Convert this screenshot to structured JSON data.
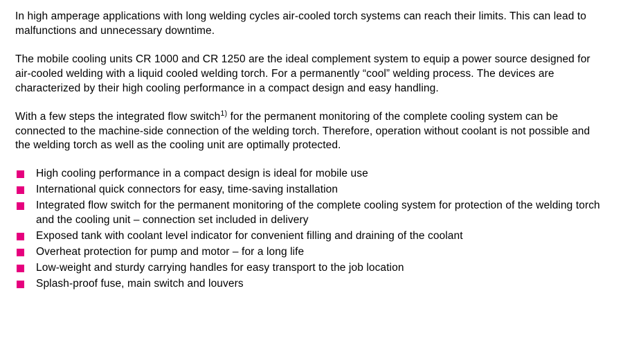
{
  "colors": {
    "text": "#000000",
    "background": "#ffffff",
    "bullet": "#e6007e"
  },
  "typography": {
    "font_family": "Futura / Century Gothic style sans-serif",
    "font_size_pt": 12,
    "line_height": 1.35
  },
  "paragraphs": {
    "p1": "In high amperage applications with long welding cycles air-cooled torch systems can reach their limits. This can lead to malfunctions and unnecessary downtime.",
    "p2": "The mobile cooling units CR 1000 and CR 1250 are the ideal complement system to equip a power source designed for air-cooled welding with a liquid cooled welding torch. For a permanently “cool” welding process. The devices are characterized by their high cooling performance in a compact design and easy handling.",
    "p3_pre": "With a few steps the integrated flow switch",
    "p3_sup": "1)",
    "p3_post": " for the permanent monitoring of the complete cooling system can be connected to the machine-side connection of the welding torch. Therefore, operation without coolant is not possible and the welding torch as well as the cooling unit are optimally protected."
  },
  "bullets": [
    "High cooling performance in a compact design is ideal for mobile use",
    "International quick connectors for easy, time-saving installation",
    "Integrated flow switch for the permanent monitoring of the complete cooling system for protection of the welding torch and the cooling unit – connection set included in delivery",
    "Exposed tank with coolant level indicator for convenient filling and draining of the coolant",
    "Overheat protection for pump and motor – for a long life",
    "Low-weight and sturdy carrying handles for easy transport to the job location",
    "Splash-proof fuse, main switch and louvers"
  ]
}
